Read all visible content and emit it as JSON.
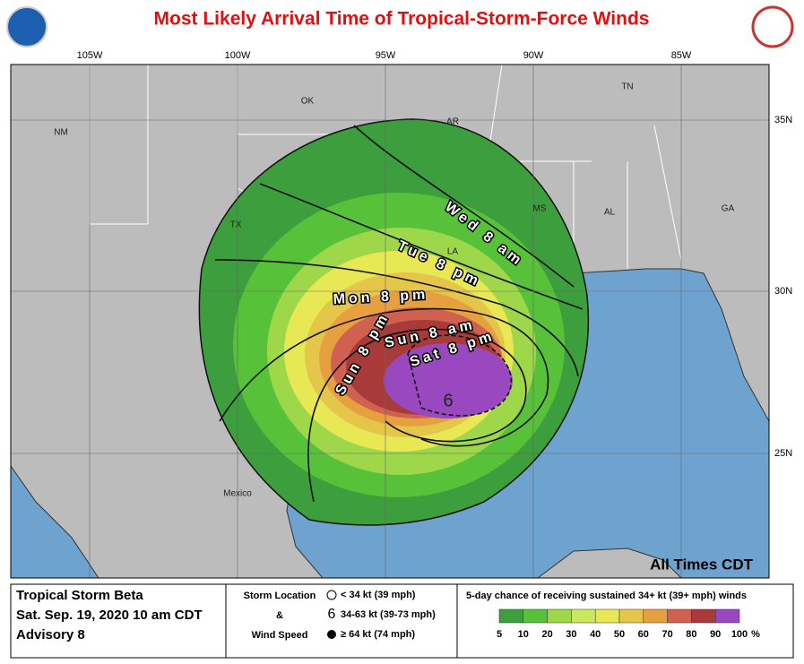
{
  "header": {
    "title": "Most Likely Arrival Time of Tropical-Storm-Force Winds"
  },
  "map": {
    "longitude_labels": [
      "105W",
      "100W",
      "95W",
      "90W",
      "85W"
    ],
    "latitude_labels": [
      "35N",
      "30N",
      "25N"
    ],
    "place_labels": [
      "NM",
      "OK",
      "AR",
      "TN",
      "MS",
      "AL",
      "GA",
      "TX",
      "LA",
      "Mexico"
    ],
    "contour_labels": [
      "Wed 8 am",
      "Tue 8 pm",
      "Mon 8 pm",
      "Sun 8 pm",
      "Sun 8 am",
      "Sat 8 pm"
    ],
    "note": "All Times CDT"
  },
  "footer": {
    "storm": {
      "name": "Tropical Storm Beta",
      "time": "Sat. Sep. 19, 2020  10 am CDT",
      "advisory": "Advisory 8"
    },
    "key": {
      "heading": [
        "Storm Location",
        "&",
        "Wind Speed"
      ],
      "items": [
        "< 34 kt (39 mph)",
        "34-63 kt (39-73 mph)",
        "≥ 64 kt (74 mph)"
      ]
    },
    "probability": {
      "title": "5-day chance of receiving sustained 34+ kt (39+ mph) winds",
      "labels": [
        "5",
        "10",
        "20",
        "30",
        "40",
        "50",
        "60",
        "70",
        "80",
        "90",
        "100"
      ],
      "unit": "%"
    }
  }
}
